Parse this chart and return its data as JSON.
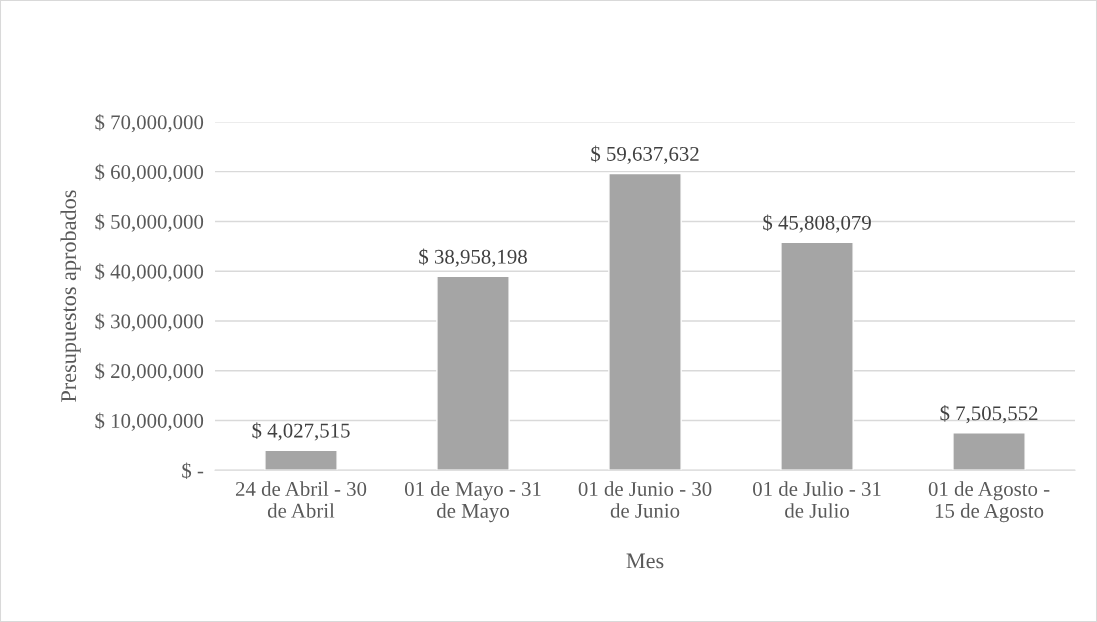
{
  "chart_data": {
    "type": "bar",
    "xlabel": "Mes",
    "ylabel": "Presupuestos aprobados",
    "categories": [
      "24 de Abril - 30\nde Abril",
      "01 de Mayo - 31\nde Mayo",
      "01 de Junio - 30\nde Junio",
      "01 de Julio - 31\nde Julio",
      "01 de Agosto -\n15 de Agosto"
    ],
    "values": [
      4027515,
      38958198,
      59637632,
      45808079,
      7505552
    ],
    "value_labels": [
      "$ 4,027,515",
      "$ 38,958,198",
      "$ 59,637,632",
      "$ 45,808,079",
      "$ 7,505,552"
    ],
    "color": "#a5a5a5",
    "ylim": [
      0,
      70000000
    ],
    "yticks": [
      {
        "value": 0,
        "label": "$ -"
      },
      {
        "value": 10000000,
        "label": "$ 10,000,000"
      },
      {
        "value": 20000000,
        "label": "$ 20,000,000"
      },
      {
        "value": 30000000,
        "label": "$ 30,000,000"
      },
      {
        "value": 40000000,
        "label": "$ 40,000,000"
      },
      {
        "value": 50000000,
        "label": "$ 50,000,000"
      },
      {
        "value": 60000000,
        "label": "$ 60,000,000"
      },
      {
        "value": 70000000,
        "label": "$ 70,000,000"
      }
    ],
    "grid": "y",
    "legend": false
  }
}
